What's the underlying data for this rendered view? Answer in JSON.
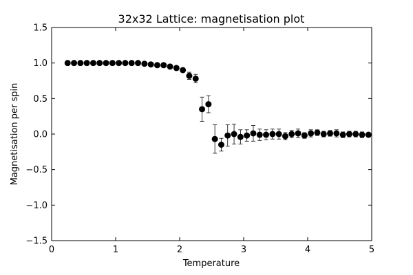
{
  "chart_data": {
    "type": "scatter",
    "title": "32x32 Lattice: magnetisation plot",
    "xlabel": "Temperature",
    "ylabel": "Magnetisation per spin",
    "xlim": [
      0,
      5
    ],
    "ylim": [
      -1.5,
      1.5
    ],
    "xticks": [
      "0",
      "1",
      "2",
      "3",
      "4",
      "5"
    ],
    "yticks": [
      "1.5",
      "1.0",
      "0.5",
      "0.0",
      "−0.5",
      "−1.0",
      "−1.5"
    ],
    "grid": false,
    "marker": "circle",
    "marker_color": "#000000",
    "error_bars": true,
    "series": [
      {
        "x": [
          0.25,
          0.35,
          0.45,
          0.55,
          0.65,
          0.75,
          0.85,
          0.95,
          1.05,
          1.15,
          1.25,
          1.35,
          1.45,
          1.55,
          1.65,
          1.75,
          1.85,
          1.95,
          2.05,
          2.15,
          2.25,
          2.35,
          2.45,
          2.55,
          2.65,
          2.75,
          2.85,
          2.95,
          3.05,
          3.15,
          3.25,
          3.35,
          3.45,
          3.55,
          3.65,
          3.75,
          3.85,
          3.95,
          4.05,
          4.15,
          4.25,
          4.35,
          4.45,
          4.55,
          4.65,
          4.75,
          4.85,
          4.95
        ],
        "y": [
          1.0,
          1.0,
          1.0,
          1.0,
          1.0,
          1.0,
          1.0,
          1.0,
          1.0,
          1.0,
          1.0,
          1.0,
          0.99,
          0.98,
          0.97,
          0.97,
          0.95,
          0.93,
          0.9,
          0.82,
          0.78,
          0.35,
          0.42,
          -0.07,
          -0.15,
          -0.02,
          0.0,
          -0.04,
          -0.02,
          0.01,
          -0.01,
          -0.01,
          0.0,
          0.0,
          -0.03,
          0.0,
          0.01,
          -0.02,
          0.01,
          0.02,
          0.0,
          0.01,
          0.01,
          -0.01,
          0.0,
          0.0,
          -0.01,
          -0.01
        ],
        "err": [
          0,
          0,
          0,
          0,
          0,
          0,
          0,
          0,
          0,
          0,
          0,
          0,
          0,
          0,
          0,
          0.01,
          0.01,
          0.02,
          0.03,
          0.05,
          0.06,
          0.17,
          0.12,
          0.2,
          0.09,
          0.15,
          0.14,
          0.1,
          0.08,
          0.11,
          0.08,
          0.07,
          0.07,
          0.07,
          0.05,
          0.05,
          0.06,
          0.04,
          0.05,
          0.04,
          0.04,
          0.04,
          0.05,
          0.04,
          0.04,
          0.04,
          0.04,
          0.03
        ]
      }
    ]
  }
}
